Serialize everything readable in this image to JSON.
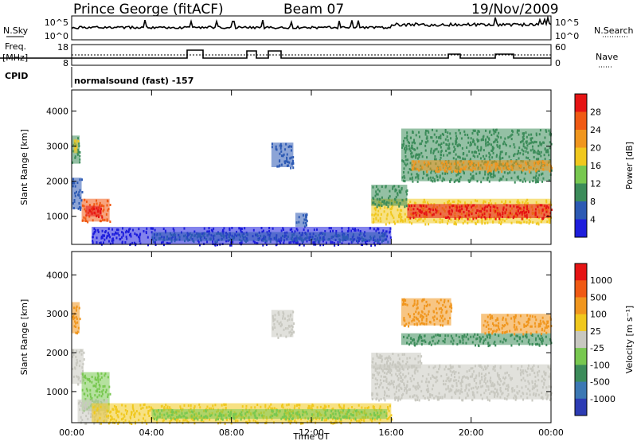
{
  "header": {
    "station": "Prince George (fitACF)",
    "beam": "Beam 07",
    "date": "19/Nov/2009"
  },
  "noise_panel": {
    "left_label": "N.Sky",
    "left_ticks": [
      "10^5",
      "10^0"
    ],
    "right_ticks": [
      "10^5",
      "10^0"
    ],
    "right_label": "N.Search"
  },
  "freq_panel": {
    "left_label_1": "Freq.",
    "left_label_2": "[MHz]",
    "left_ticks": [
      "18",
      "8"
    ],
    "right_ticks": [
      "60",
      "0"
    ],
    "right_label": "Nave"
  },
  "cpid": {
    "label": "CPID",
    "text": "normalsound (fast) -157"
  },
  "colors": {
    "background": "#ffffff",
    "axis": "#000000",
    "velocity_low_scatter": "#c8c8c0"
  },
  "chart_data": [
    {
      "type": "heatmap",
      "id": "power",
      "ylabel": "Slant Range [km]",
      "y_ticks": [
        "1000",
        "2000",
        "3000",
        "4000"
      ],
      "ylim": [
        200,
        4600
      ],
      "x_ticks": [
        "00:00",
        "04:00",
        "08:00",
        "12:00",
        "16:00",
        "20:00",
        "00:00"
      ],
      "xlim_hours": [
        0,
        24
      ],
      "colorbar": {
        "label": "Power [dB]",
        "ticks": [
          "4",
          "8",
          "12",
          "16",
          "20",
          "24",
          "28"
        ],
        "colors": [
          "#1e1edc",
          "#2d5ab4",
          "#3c8c5a",
          "#78c850",
          "#f0c81e",
          "#f0961e",
          "#f05a14",
          "#e61414"
        ]
      },
      "regions": [
        {
          "t0": 0.0,
          "t1": 0.4,
          "r0": 2500,
          "r1": 3300,
          "color": "#3c8c5a"
        },
        {
          "t0": 0.5,
          "t1": 1.9,
          "r0": 850,
          "r1": 1500,
          "color": "#f05a14"
        },
        {
          "t0": 0.7,
          "t1": 1.5,
          "r0": 1000,
          "r1": 1300,
          "color": "#e61414"
        },
        {
          "t0": 0.0,
          "t1": 0.5,
          "r0": 1200,
          "r1": 2100,
          "color": "#2d5ab4"
        },
        {
          "t0": 0.1,
          "t1": 0.3,
          "r0": 2800,
          "r1": 3200,
          "color": "#f0c81e"
        },
        {
          "t0": 10.0,
          "t1": 11.1,
          "r0": 2400,
          "r1": 3100,
          "color": "#2d5ab4"
        },
        {
          "t0": 11.2,
          "t1": 11.8,
          "r0": 700,
          "r1": 1100,
          "color": "#2d5ab4"
        },
        {
          "t0": 1.0,
          "t1": 16.0,
          "r0": 200,
          "r1": 700,
          "color": "#1e1edc"
        },
        {
          "t0": 4.0,
          "t1": 15.8,
          "r0": 300,
          "r1": 550,
          "color": "#2d5ab4"
        },
        {
          "t0": 15.0,
          "t1": 24.0,
          "r0": 800,
          "r1": 1500,
          "color": "#f0c81e"
        },
        {
          "t0": 16.8,
          "t1": 24.0,
          "r0": 950,
          "r1": 1350,
          "color": "#e61414"
        },
        {
          "t0": 15.0,
          "t1": 16.8,
          "r0": 1300,
          "r1": 1900,
          "color": "#3c8c5a"
        },
        {
          "t0": 16.5,
          "t1": 24.0,
          "r0": 2000,
          "r1": 2900,
          "color": "#3c8c5a"
        },
        {
          "t0": 17.0,
          "t1": 24.0,
          "r0": 2300,
          "r1": 2600,
          "color": "#f0961e"
        },
        {
          "t0": 16.5,
          "t1": 24.0,
          "r0": 2900,
          "r1": 3500,
          "color": "#3c8c5a"
        }
      ]
    },
    {
      "type": "heatmap",
      "id": "velocity",
      "ylabel": "Slant Range [km]",
      "y_ticks": [
        "1000",
        "2000",
        "3000",
        "4000"
      ],
      "ylim": [
        200,
        4600
      ],
      "x_ticks": [
        "00:00",
        "04:00",
        "08:00",
        "12:00",
        "16:00",
        "20:00",
        "00:00"
      ],
      "xlim_hours": [
        0,
        24
      ],
      "xlabel": "Time UT",
      "colorbar": {
        "label": "Velocity [m s⁻¹]",
        "ticks": [
          "1000",
          "500",
          "100",
          "25",
          "-25",
          "-100",
          "-500",
          "-1000"
        ],
        "colors": [
          "#2d3cb4",
          "#3c78b4",
          "#3c8c5a",
          "#78c850",
          "#c8c8c0",
          "#f0c81e",
          "#f0961e",
          "#f05a14",
          "#e61414"
        ]
      },
      "regions": [
        {
          "t0": 0.0,
          "t1": 0.4,
          "r0": 2500,
          "r1": 3300,
          "color": "#f0961e"
        },
        {
          "t0": 0.0,
          "t1": 0.6,
          "r0": 1200,
          "r1": 2100,
          "color": "#c8c8c0"
        },
        {
          "t0": 0.5,
          "t1": 1.9,
          "r0": 500,
          "r1": 1500,
          "color": "#78c850"
        },
        {
          "t0": 0.3,
          "t1": 1.8,
          "r0": 200,
          "r1": 800,
          "color": "#c8c8c0"
        },
        {
          "t0": 10.0,
          "t1": 11.1,
          "r0": 2400,
          "r1": 3100,
          "color": "#c8c8c0"
        },
        {
          "t0": 1.0,
          "t1": 16.0,
          "r0": 200,
          "r1": 700,
          "color": "#f0c81e"
        },
        {
          "t0": 4.0,
          "t1": 15.8,
          "r0": 300,
          "r1": 550,
          "color": "#78c850"
        },
        {
          "t0": 15.0,
          "t1": 24.0,
          "r0": 800,
          "r1": 1700,
          "color": "#c8c8c0"
        },
        {
          "t0": 15.0,
          "t1": 17.5,
          "r0": 1600,
          "r1": 2000,
          "color": "#c8c8c0"
        },
        {
          "t0": 16.5,
          "t1": 24.0,
          "r0": 2200,
          "r1": 2500,
          "color": "#3c8c5a"
        },
        {
          "t0": 16.5,
          "t1": 19.0,
          "r0": 2700,
          "r1": 3400,
          "color": "#f0961e"
        },
        {
          "t0": 20.5,
          "t1": 24.0,
          "r0": 2500,
          "r1": 3000,
          "color": "#f0961e"
        }
      ]
    }
  ]
}
